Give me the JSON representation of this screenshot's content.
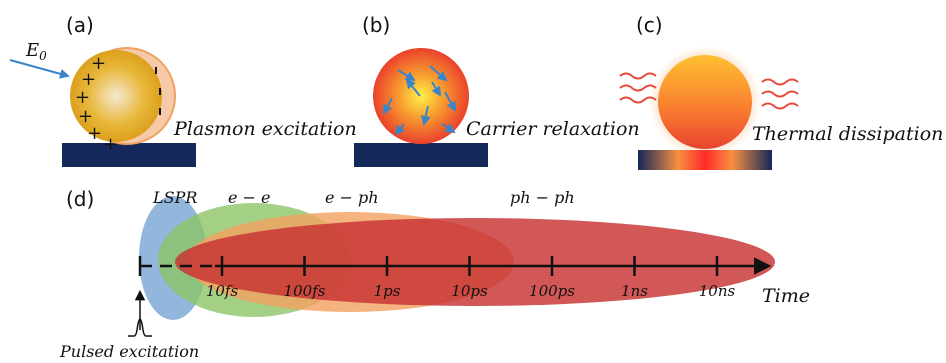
{
  "panels": [
    {
      "label": "(a)",
      "caption": "Plasmon excitation",
      "field_label": "E",
      "field_sub": "0"
    },
    {
      "label": "(b)",
      "caption": "Carrier relaxation"
    },
    {
      "label": "(c)",
      "caption": "Thermal dissipation"
    }
  ],
  "timeline": {
    "label": "(d)",
    "axis_title": "Time",
    "ticks": [
      "10fs",
      "100fs",
      "1ps",
      "10ps",
      "100ps",
      "1ns",
      "10ns"
    ],
    "processes": [
      "LSPR",
      "e − e",
      "e − ph",
      "ph − ph"
    ],
    "pulse_label": "Pulsed excitation"
  },
  "colors": {
    "substrate": "#14285a",
    "lspr": "#7fa9d6",
    "ee": "#8cc466",
    "eph": "#f0a060",
    "phph": "#c83232",
    "arrow": "#3a85c8"
  }
}
